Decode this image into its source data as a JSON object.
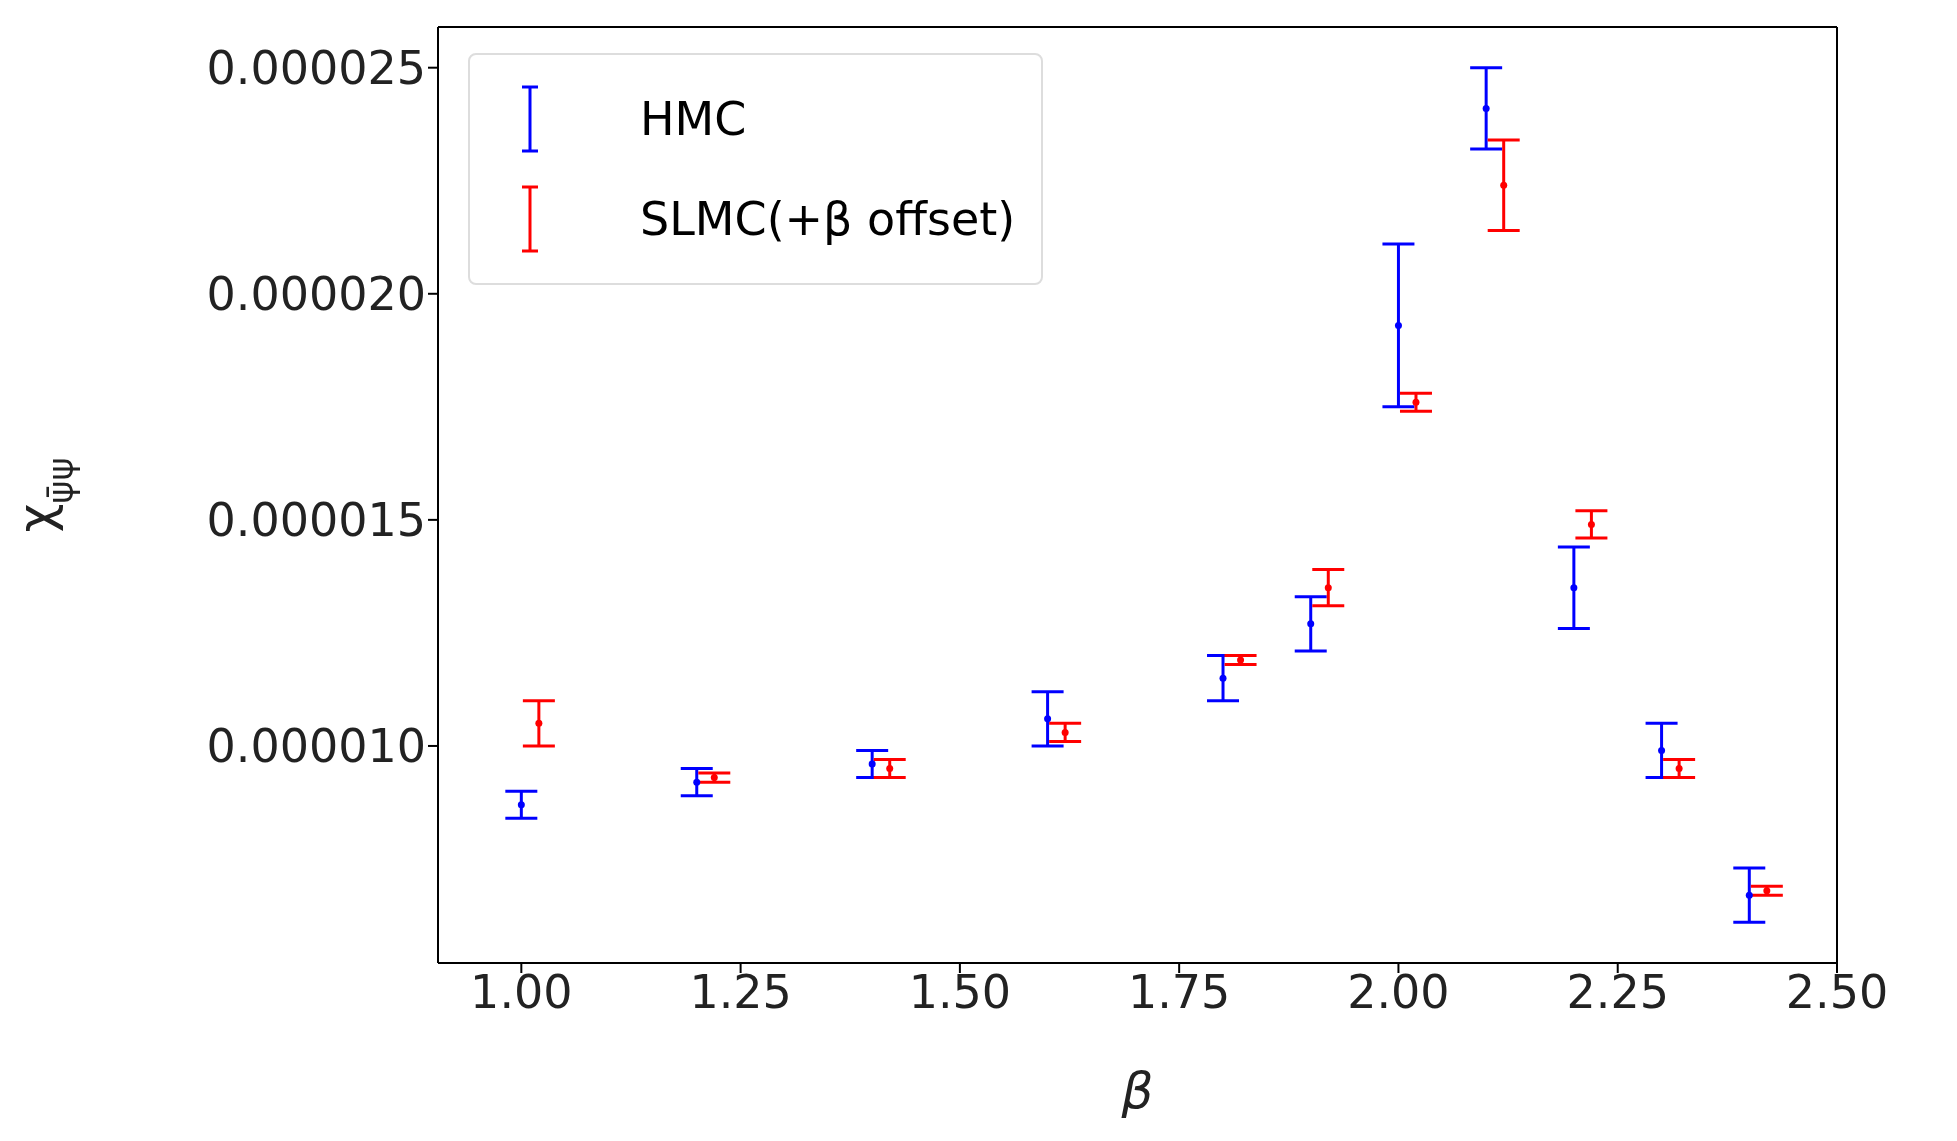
{
  "chart_data": {
    "type": "scatter",
    "xlabel": "β",
    "ylabel": "χ$_{ψ̄ψ}$",
    "legend": "top left",
    "grid": false,
    "xlim": [
      0.905,
      2.5
    ],
    "xticks": [
      {
        "value": 1,
        "label": "1.00"
      },
      {
        "value": 1.25,
        "label": "1.25"
      },
      {
        "value": 1.5,
        "label": "1.50"
      },
      {
        "value": 1.75,
        "label": "1.75"
      },
      {
        "value": 2,
        "label": "2.00"
      },
      {
        "value": 2.25,
        "label": "2.25"
      },
      {
        "value": 2.5,
        "label": "2.50"
      }
    ],
    "ylim": [
      5.2e-06,
      2.59e-05
    ],
    "yticks": [
      {
        "value": 1e-05,
        "label": "0.000010"
      },
      {
        "value": 1.5e-05,
        "label": "0.000015"
      },
      {
        "value": 2e-05,
        "label": "0.000020"
      },
      {
        "value": 2.5e-05,
        "label": "0.000025"
      }
    ],
    "series": [
      {
        "name": "HMC",
        "color": "#0000ff",
        "x": [
          1.0,
          1.2,
          1.4,
          1.6,
          1.8,
          1.9,
          2.0,
          2.1,
          2.2,
          2.3,
          2.4
        ],
        "values": [
          8.7e-06,
          9.2e-06,
          9.6e-06,
          1.06e-05,
          1.15e-05,
          1.27e-05,
          1.93e-05,
          2.41e-05,
          1.35e-05,
          9.9e-06,
          6.7e-06
        ],
        "errors": [
          3e-07,
          3e-07,
          3e-07,
          6e-07,
          5e-07,
          6e-07,
          1.8e-06,
          9e-07,
          9e-07,
          6e-07,
          6e-07
        ]
      },
      {
        "name": "SLMC(+β offset)",
        "color": "#ff0000",
        "x": [
          1.02,
          1.22,
          1.42,
          1.62,
          1.82,
          1.92,
          2.02,
          2.12,
          2.22,
          2.32,
          2.42
        ],
        "values": [
          1.05e-05,
          9.3e-06,
          9.5e-06,
          1.03e-05,
          1.19e-05,
          1.35e-05,
          1.76e-05,
          2.24e-05,
          1.49e-05,
          9.5e-06,
          6.8e-06
        ],
        "errors": [
          5e-07,
          1e-07,
          2e-07,
          2e-07,
          1e-07,
          4e-07,
          2e-07,
          1e-06,
          3e-07,
          2e-07,
          1e-07
        ]
      }
    ]
  }
}
